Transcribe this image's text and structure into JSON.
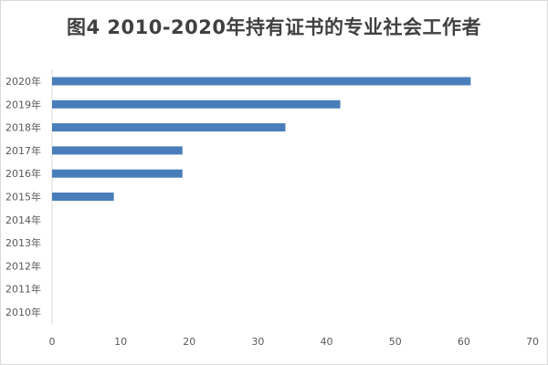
{
  "chart_data": {
    "type": "bar",
    "orientation": "horizontal",
    "title": "图4  2010-2020年持有证书的专业社会工作者",
    "xlabel": "",
    "ylabel": "",
    "categories": [
      "2010年",
      "2011年",
      "2012年",
      "2013年",
      "2014年",
      "2015年",
      "2016年",
      "2017年",
      "2018年",
      "2019年",
      "2020年"
    ],
    "values": [
      0,
      0,
      0,
      0,
      0,
      9,
      19,
      19,
      34,
      42,
      61
    ],
    "xlim": [
      0,
      70
    ],
    "xticks": [
      0,
      10,
      20,
      30,
      40,
      50,
      60,
      70
    ],
    "grid": false,
    "legend": "none",
    "bar_color": "#4a7ebb"
  }
}
